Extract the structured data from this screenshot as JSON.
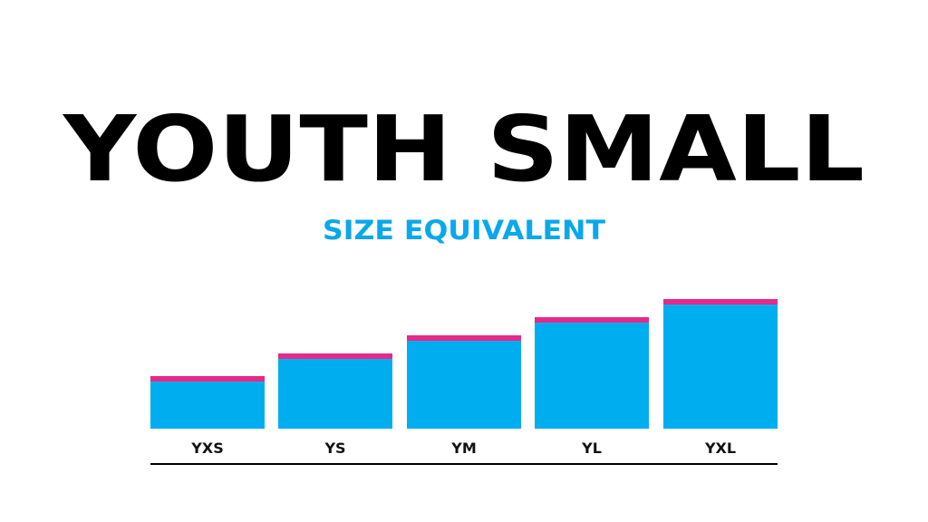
{
  "header": {
    "title": "YOUTH SMALL",
    "subtitle": "SIZE EQUIVALENT"
  },
  "sizes": [
    "YXS",
    "YS",
    "YM",
    "YL",
    "YXL"
  ]
}
